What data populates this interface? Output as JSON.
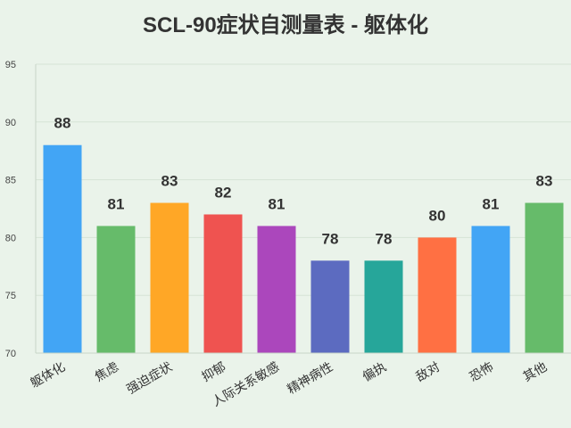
{
  "chart_data": {
    "type": "bar",
    "title": "SCL-90症状自测量表 - 躯体化",
    "xlabel": "",
    "ylabel": "",
    "ylim": [
      70,
      95
    ],
    "yticks": [
      70,
      75,
      80,
      85,
      90,
      95
    ],
    "grid": true,
    "legend": "none",
    "categories": [
      "躯体化",
      "焦虑",
      "强迫症状",
      "抑郁",
      "人际关系敏感",
      "精神病性",
      "偏执",
      "敌对",
      "恐怖",
      "其他"
    ],
    "values": [
      88,
      81,
      83,
      82,
      81,
      78,
      78,
      80,
      81,
      83
    ],
    "colors": [
      "#42a5f5",
      "#66bb6a",
      "#ffa726",
      "#ef5350",
      "#ab47bc",
      "#5c6bc0",
      "#26a69a",
      "#ff7043",
      "#42a5f5",
      "#66bb6a"
    ]
  }
}
